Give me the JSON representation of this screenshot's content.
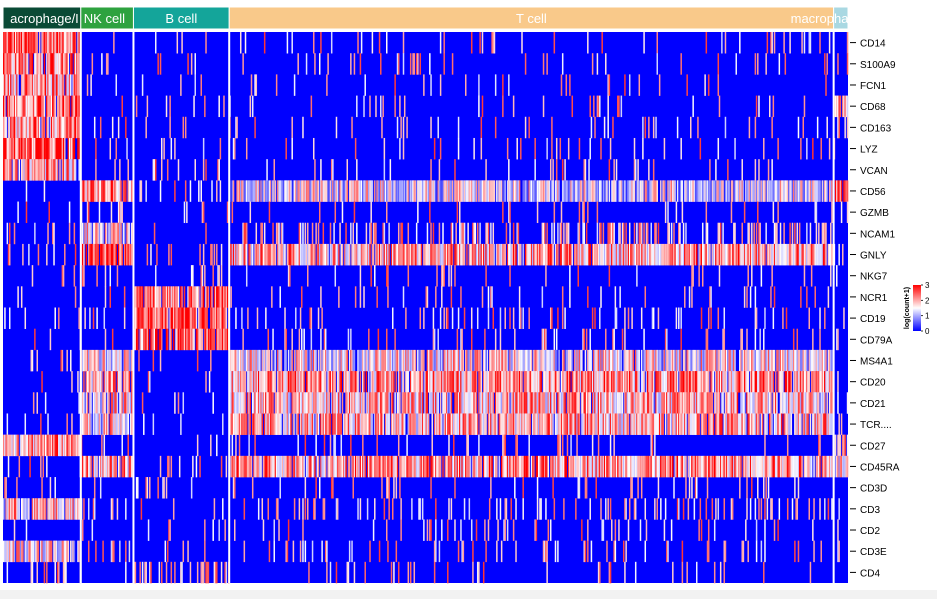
{
  "chart_data": {
    "type": "heatmap",
    "title": "",
    "xlabel": "",
    "ylabel": "",
    "cell_type_groups": [
      {
        "label": "acrophage/I",
        "color": "#0a4a35",
        "cells": 65
      },
      {
        "label": "NK cell",
        "color": "#2ea23f",
        "cells": 44
      },
      {
        "label": "B cell",
        "color": "#14a59a",
        "cells": 80
      },
      {
        "label": "T cell",
        "color": "#f9c98a",
        "cells": 505
      },
      {
        "label": "macropha",
        "color": "#a9d8e2",
        "cells": 12
      }
    ],
    "genes": [
      "CD14",
      "S100A9",
      "FCN1",
      "CD68",
      "CD163",
      "LYZ",
      "VCAN",
      "CD56",
      "GZMB",
      "NCAM1",
      "GNLY",
      "NKG7",
      "NCR1",
      "CD19",
      "CD79A",
      "MS4A1",
      "CD20",
      "CD21",
      "TCR....",
      "CD27",
      "CD45RA",
      "CD3D",
      "CD3",
      "CD2",
      "CD3E",
      "CD4"
    ],
    "mean_expression": [
      [
        2.4,
        0.2,
        0.2,
        0.2,
        0.2
      ],
      [
        2.2,
        0.2,
        0.2,
        0.2,
        0.2
      ],
      [
        2.1,
        0.2,
        0.2,
        0.2,
        0.2
      ],
      [
        2.3,
        0.2,
        0.2,
        0.2,
        2.0
      ],
      [
        2.1,
        0.2,
        0.2,
        0.2,
        0.2
      ],
      [
        2.5,
        0.2,
        0.2,
        0.2,
        0.2
      ],
      [
        2.0,
        0.2,
        0.2,
        0.2,
        0.2
      ],
      [
        0.2,
        2.2,
        0.2,
        1.4,
        2.8
      ],
      [
        0.2,
        0.5,
        0.2,
        0.3,
        0.2
      ],
      [
        0.2,
        1.6,
        0.2,
        0.9,
        0.2
      ],
      [
        0.2,
        2.7,
        0.3,
        2.0,
        0.2
      ],
      [
        0.2,
        0.3,
        0.2,
        0.2,
        0.2
      ],
      [
        0.2,
        0.2,
        2.3,
        0.2,
        0.2
      ],
      [
        0.2,
        0.2,
        2.5,
        0.4,
        0.2
      ],
      [
        0.2,
        0.2,
        2.4,
        0.3,
        0.2
      ],
      [
        0.2,
        1.6,
        0.2,
        1.6,
        0.2
      ],
      [
        0.2,
        1.9,
        0.2,
        2.1,
        0.2
      ],
      [
        0.2,
        1.7,
        0.2,
        1.9,
        0.2
      ],
      [
        0.2,
        1.8,
        0.2,
        1.9,
        0.2
      ],
      [
        2.1,
        0.2,
        0.2,
        0.2,
        1.8
      ],
      [
        0.2,
        1.9,
        0.2,
        2.1,
        1.6
      ],
      [
        0.2,
        0.3,
        0.2,
        0.3,
        0.2
      ],
      [
        1.8,
        0.5,
        0.2,
        0.5,
        0.2
      ],
      [
        0.3,
        0.2,
        0.2,
        0.3,
        0.2
      ],
      [
        1.6,
        0.2,
        0.3,
        0.3,
        0.2
      ],
      [
        0.3,
        0.2,
        0.9,
        0.2,
        0.2
      ]
    ],
    "color_scale": {
      "title": "log(count+1)",
      "min": 0,
      "max": 3,
      "ticks": [
        0,
        1,
        2,
        3
      ],
      "colors": [
        "#0000ff",
        "#ffffff",
        "#ff0000"
      ]
    },
    "legend_position": "right"
  }
}
